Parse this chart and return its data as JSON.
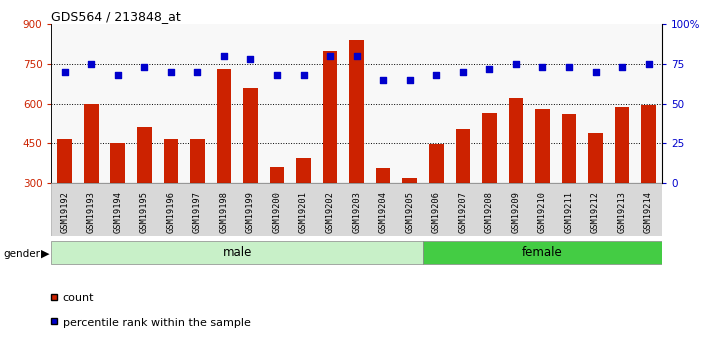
{
  "title": "GDS564 / 213848_at",
  "samples": [
    "GSM19192",
    "GSM19193",
    "GSM19194",
    "GSM19195",
    "GSM19196",
    "GSM19197",
    "GSM19198",
    "GSM19199",
    "GSM19200",
    "GSM19201",
    "GSM19202",
    "GSM19203",
    "GSM19204",
    "GSM19205",
    "GSM19206",
    "GSM19207",
    "GSM19208",
    "GSM19209",
    "GSM19210",
    "GSM19211",
    "GSM19212",
    "GSM19213",
    "GSM19214"
  ],
  "counts": [
    465,
    600,
    450,
    510,
    465,
    465,
    730,
    660,
    360,
    395,
    800,
    840,
    355,
    320,
    445,
    505,
    565,
    620,
    580,
    560,
    490,
    585,
    595
  ],
  "percentile": [
    70,
    75,
    68,
    73,
    70,
    70,
    80,
    78,
    68,
    68,
    80,
    80,
    65,
    65,
    68,
    70,
    72,
    75,
    73,
    73,
    70,
    73,
    75
  ],
  "gender": [
    "male",
    "male",
    "male",
    "male",
    "male",
    "male",
    "male",
    "male",
    "male",
    "male",
    "male",
    "male",
    "male",
    "male",
    "female",
    "female",
    "female",
    "female",
    "female",
    "female",
    "female",
    "female",
    "female"
  ],
  "male_color": "#c8f0c8",
  "female_color": "#44cc44",
  "bar_color": "#cc2200",
  "dot_color": "#0000cc",
  "bar_bottom": 300,
  "ylim_left": [
    300,
    900
  ],
  "ylim_right": [
    0,
    100
  ],
  "yticks_left": [
    300,
    450,
    600,
    750,
    900
  ],
  "yticks_right": [
    0,
    25,
    50,
    75,
    100
  ],
  "grid_values": [
    450,
    600,
    750
  ],
  "tick_bg_color": "#d8d8d8",
  "plot_bg_color": "#f8f8f8"
}
